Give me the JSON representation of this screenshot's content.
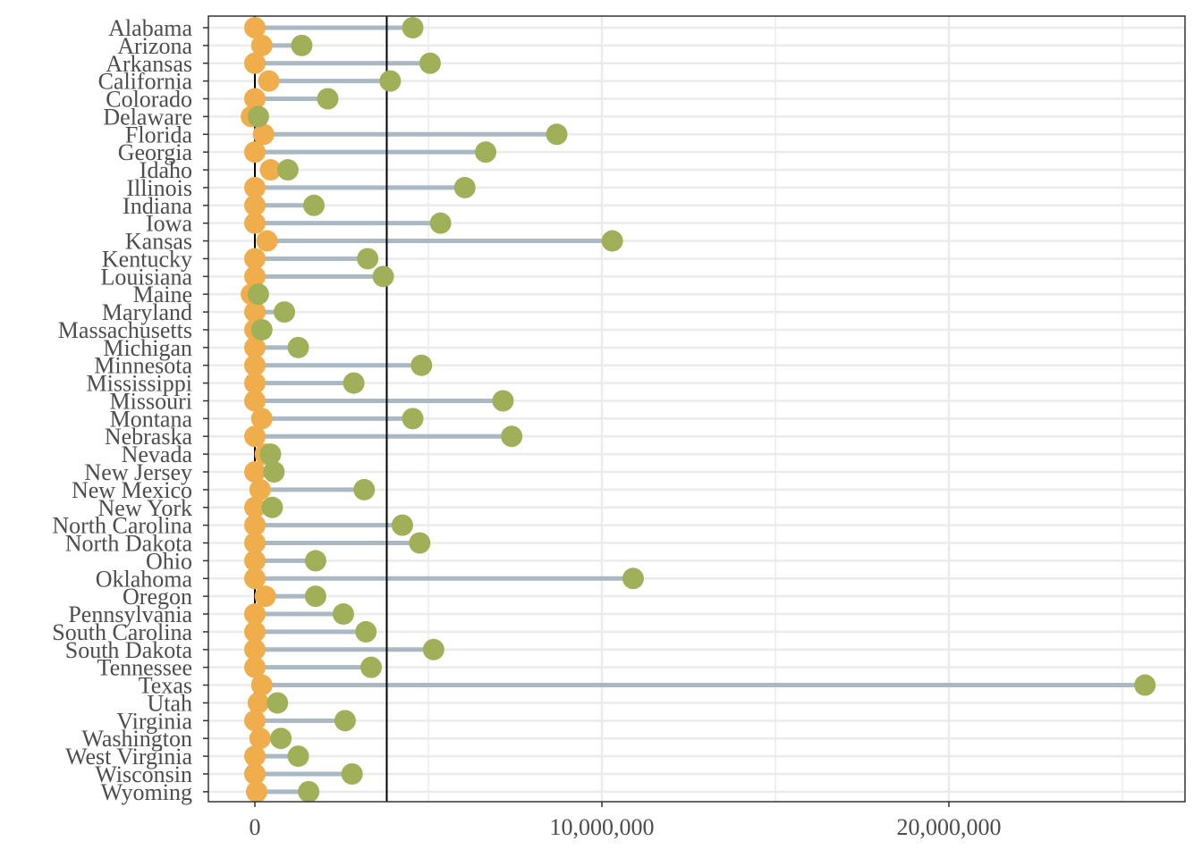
{
  "chart_data": {
    "type": "dumbbell",
    "title": "",
    "xlabel": "",
    "ylabel": "",
    "xlim": [
      -1200000,
      26800000
    ],
    "x_ticks": [
      0,
      10000000,
      20000000
    ],
    "x_tick_labels": [
      "0",
      "10,000,000",
      "20,000,000"
    ],
    "grid": true,
    "reference_lines": [
      0,
      3800000
    ],
    "colors": {
      "start_point": "#EFAD4C",
      "end_point": "#9FB059",
      "segment": "#A9B8C2",
      "reference_line": "#000000",
      "grid": "#EBEBEB",
      "panel_border": "#333333",
      "text": "#4D4D4D"
    },
    "categories": [
      "Alabama",
      "Arizona",
      "Arkansas",
      "California",
      "Colorado",
      "Delaware",
      "Florida",
      "Georgia",
      "Idaho",
      "Illinois",
      "Indiana",
      "Iowa",
      "Kansas",
      "Kentucky",
      "Louisiana",
      "Maine",
      "Maryland",
      "Massachusetts",
      "Michigan",
      "Minnesota",
      "Mississippi",
      "Missouri",
      "Montana",
      "Nebraska",
      "Nevada",
      "New Jersey",
      "New Mexico",
      "New York",
      "North Carolina",
      "North Dakota",
      "Ohio",
      "Oklahoma",
      "Oregon",
      "Pennsylvania",
      "South Carolina",
      "South Dakota",
      "Tennessee",
      "Texas",
      "Utah",
      "Virginia",
      "Washington",
      "West Virginia",
      "Wisconsin",
      "Wyoming"
    ],
    "series": [
      {
        "values": [
          0,
          200000,
          0,
          400000,
          0,
          -100000,
          250000,
          0,
          450000,
          0,
          0,
          0,
          350000,
          0,
          0,
          -100000,
          0,
          0,
          0,
          0,
          0,
          0,
          200000,
          0,
          300000,
          0,
          150000,
          0,
          0,
          0,
          0,
          0,
          300000,
          0,
          0,
          0,
          0,
          200000,
          100000,
          0,
          150000,
          0,
          0,
          50000
        ]
      },
      {
        "values": [
          4550000,
          1350000,
          5050000,
          3900000,
          2100000,
          100000,
          8700000,
          6650000,
          950000,
          6050000,
          1700000,
          5350000,
          10300000,
          3250000,
          3700000,
          100000,
          850000,
          200000,
          1250000,
          4800000,
          2850000,
          7150000,
          4550000,
          7400000,
          450000,
          550000,
          3150000,
          500000,
          4250000,
          4750000,
          1750000,
          10900000,
          1750000,
          2550000,
          3200000,
          5150000,
          3350000,
          25650000,
          650000,
          2600000,
          750000,
          1250000,
          2800000,
          1550000
        ]
      }
    ]
  }
}
